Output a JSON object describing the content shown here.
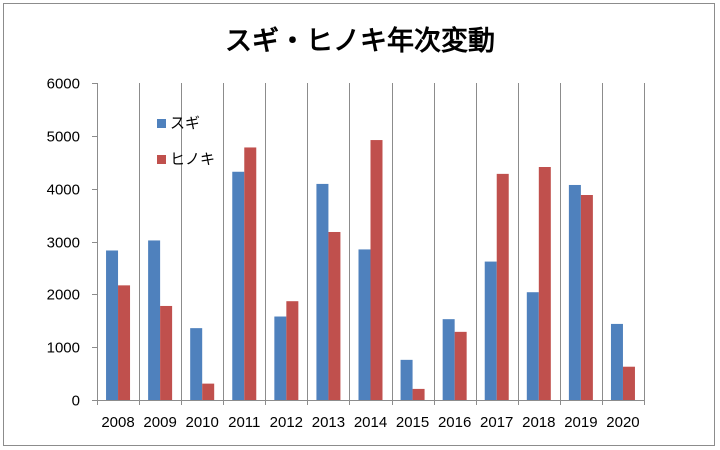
{
  "chart_data": {
    "type": "bar",
    "title": "スギ・ヒノキ年次変動",
    "xlabel": "",
    "ylabel": "",
    "categories": [
      "2008",
      "2009",
      "2010",
      "2011",
      "2012",
      "2013",
      "2014",
      "2015",
      "2016",
      "2017",
      "2018",
      "2019",
      "2020"
    ],
    "series": [
      {
        "name": "スギ",
        "color": "#4f81bd",
        "values": [
          2830,
          3020,
          1360,
          4320,
          1580,
          4090,
          2850,
          760,
          1530,
          2620,
          2040,
          4070,
          1440
        ]
      },
      {
        "name": "ヒノキ",
        "color": "#c0504d",
        "values": [
          2170,
          1780,
          310,
          4780,
          1870,
          3180,
          4920,
          210,
          1290,
          4280,
          4410,
          3880,
          630
        ]
      }
    ],
    "ylim": [
      0,
      6000
    ],
    "yticks": [
      "0",
      "1000",
      "2000",
      "3000",
      "4000",
      "5000",
      "6000"
    ],
    "grid": "vertical-only",
    "legend_position": "top-left"
  }
}
